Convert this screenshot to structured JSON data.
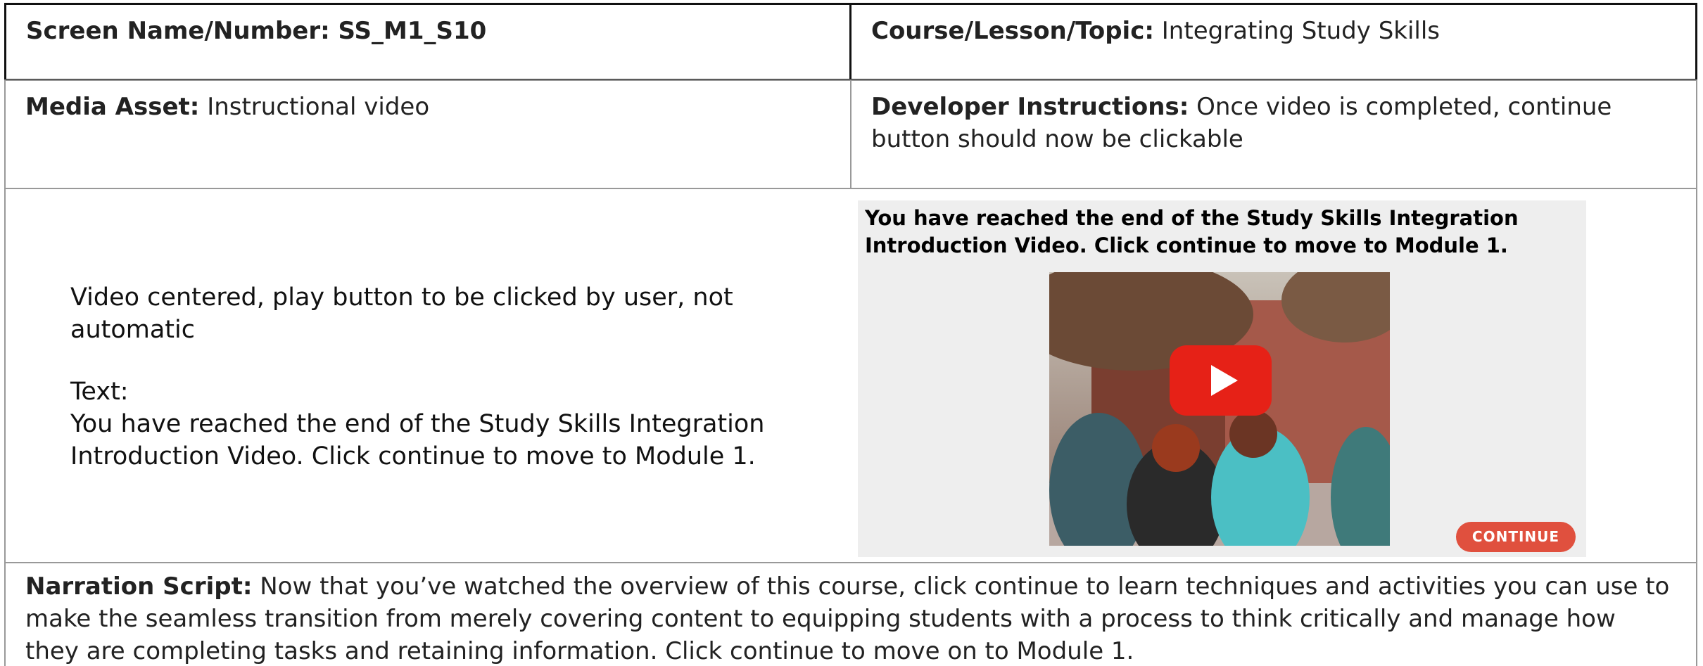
{
  "row1": {
    "screen_label": "Screen Name/Number: SS_M1_S10",
    "course_label": "Course/Lesson/Topic:",
    "course_value": "Integrating Study Skills"
  },
  "row2": {
    "media_label": "Media Asset:",
    "media_value": "Instructional video",
    "dev_label": "Developer Instructions:",
    "dev_value": "Once video is completed, continue button should now be clickable"
  },
  "row3": {
    "notes": "Video centered, play button to be clicked by user, not automatic",
    "text_label": "Text:",
    "text_value": "You have reached the end of the Study Skills Integration Introduction Video. Click continue to move to Module 1.",
    "preview_heading": "You have reached the end of the Study Skills Integration Introduction Video. Click continue to move to Module 1.",
    "continue_button": "CONTINUE"
  },
  "row4": {
    "narration_label": "Narration Script:",
    "narration_value": "Now that you’ve watched the overview of this course, click continue to learn techniques and activities you can use to make the seamless transition from merely covering content to equipping students with a process to think critically and manage how they are completing tasks and retaining information. Click continue to move on to Module 1."
  }
}
